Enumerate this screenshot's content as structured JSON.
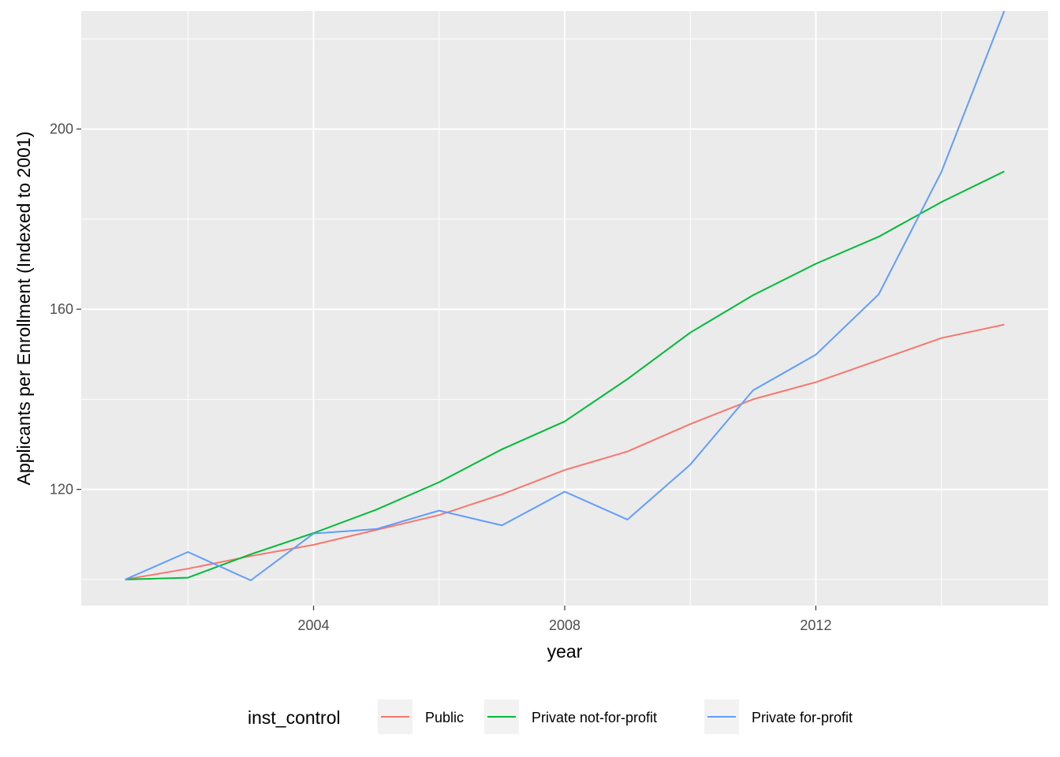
{
  "chart_data": {
    "type": "line",
    "xlabel": "year",
    "ylabel": "Applicants per Enrollment (Indexed to 2001)",
    "xlim": [
      2000.3,
      2015.7
    ],
    "ylim": [
      94.2,
      226.2
    ],
    "x_ticks": [
      2004,
      2008,
      2012
    ],
    "x_tick_labels": [
      "2004",
      "2008",
      "2012"
    ],
    "y_ticks": [
      120,
      160,
      200
    ],
    "y_tick_labels": [
      "120",
      "160",
      "200"
    ],
    "x_minor_ticks": [
      2002,
      2006,
      2010,
      2014
    ],
    "y_minor_ticks": [
      100,
      140,
      180,
      220
    ],
    "grid": true,
    "legend_position": "bottom",
    "legend_title": "inst_control",
    "x": [
      2001,
      2002,
      2003,
      2004,
      2005,
      2006,
      2007,
      2008,
      2009,
      2010,
      2011,
      2012,
      2013,
      2014,
      2015
    ],
    "series": [
      {
        "name": "Public",
        "color": "#F8766D",
        "values": [
          100,
          102.4,
          105.2,
          107.7,
          111.0,
          114.3,
          118.9,
          124.3,
          128.4,
          134.5,
          140.0,
          143.8,
          148.7,
          153.6,
          156.6
        ]
      },
      {
        "name": "Private not-for-profit",
        "color": "#00BA38",
        "values": [
          100,
          100.4,
          105.6,
          110.3,
          115.5,
          121.6,
          128.9,
          135.1,
          144.5,
          154.8,
          163.1,
          170.1,
          176.1,
          183.8,
          190.6
        ]
      },
      {
        "name": "Private for-profit",
        "color": "#619CFF",
        "values": [
          100,
          106.1,
          99.8,
          110.2,
          111.2,
          115.3,
          112.0,
          119.5,
          113.3,
          125.5,
          142.0,
          149.9,
          163.3,
          190.5,
          226.2
        ]
      }
    ]
  }
}
